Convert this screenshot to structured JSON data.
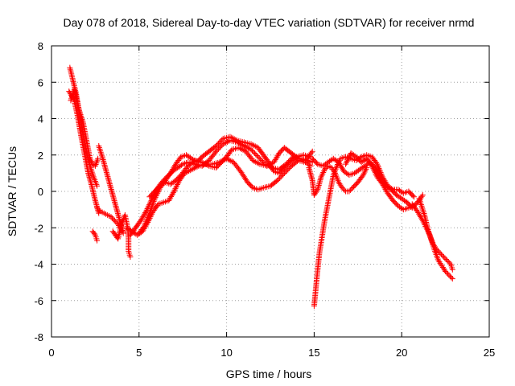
{
  "chart_data": {
    "type": "scatter",
    "title": "Day 078 of 2018, Sidereal Day-to-day VTEC variation (SDTVAR) for receiver nrmd",
    "xlabel": "GPS time / hours",
    "ylabel": "SDTVAR / TECUs",
    "xlim": [
      0,
      25
    ],
    "ylim": [
      -8,
      8
    ],
    "xticks": [
      0,
      5,
      10,
      15,
      20,
      25
    ],
    "yticks": [
      -8,
      -6,
      -4,
      -2,
      0,
      2,
      4,
      6,
      8
    ],
    "xtick_labels": [
      "0",
      "5",
      "10",
      "15",
      "20",
      "25"
    ],
    "ytick_labels": [
      "-8",
      "-6",
      "-4",
      "-2",
      "0",
      "2",
      "4",
      "6",
      "8"
    ],
    "grid": true,
    "marker": "+",
    "series": [
      {
        "name": "SDTVAR",
        "color": "#ff0000",
        "tracks": [
          [
            [
              1.05,
              6.8
            ],
            [
              1.2,
              6.2
            ],
            [
              1.4,
              5.4
            ],
            [
              1.6,
              4.3
            ],
            [
              1.8,
              3.2
            ],
            [
              2.0,
              2.2
            ],
            [
              2.2,
              1.4
            ],
            [
              2.4,
              0.8
            ],
            [
              2.6,
              0.3
            ]
          ],
          [
            [
              1.0,
              5.5
            ],
            [
              1.3,
              5.0
            ],
            [
              1.5,
              4.1
            ],
            [
              1.7,
              3.0
            ],
            [
              1.9,
              2.0
            ],
            [
              2.1,
              1.0
            ],
            [
              2.3,
              0.3
            ],
            [
              2.5,
              -0.5
            ],
            [
              2.7,
              -1.2
            ]
          ],
          [
            [
              1.1,
              5.0
            ],
            [
              1.3,
              5.6
            ],
            [
              1.5,
              4.7
            ],
            [
              1.8,
              3.8
            ],
            [
              2.0,
              2.8
            ],
            [
              2.2,
              1.8
            ],
            [
              2.35,
              1.5
            ],
            [
              2.5,
              1.4
            ],
            [
              2.65,
              1.8
            ]
          ],
          [
            [
              2.35,
              -2.2
            ],
            [
              2.5,
              -2.4
            ],
            [
              2.6,
              -2.7
            ]
          ],
          [
            [
              2.6,
              -0.9
            ],
            [
              2.8,
              -1.1
            ],
            [
              3.0,
              -1.2
            ],
            [
              3.2,
              -1.3
            ],
            [
              3.4,
              -1.4
            ],
            [
              3.6,
              -1.6
            ],
            [
              3.8,
              -1.8
            ],
            [
              4.0,
              -2.2
            ]
          ],
          [
            [
              2.7,
              2.5
            ],
            [
              2.9,
              1.9
            ],
            [
              3.1,
              1.2
            ],
            [
              3.3,
              0.5
            ],
            [
              3.5,
              -0.2
            ],
            [
              3.7,
              -0.9
            ],
            [
              3.9,
              -1.6
            ],
            [
              4.1,
              -2.3
            ]
          ],
          [
            [
              3.5,
              -2.2
            ],
            [
              3.8,
              -2.6
            ],
            [
              4.0,
              -1.8
            ],
            [
              4.2,
              -1.3
            ],
            [
              4.35,
              -2.0
            ],
            [
              4.4,
              -2.6
            ],
            [
              4.4,
              -3.3
            ],
            [
              4.5,
              -3.6
            ]
          ],
          [
            [
              4.3,
              -2.0
            ],
            [
              4.6,
              -2.2
            ],
            [
              4.9,
              -2.4
            ],
            [
              5.2,
              -2.2
            ],
            [
              5.5,
              -1.7
            ],
            [
              5.8,
              -1.1
            ],
            [
              6.1,
              -0.7
            ],
            [
              6.4,
              -0.6
            ],
            [
              6.7,
              -0.5
            ],
            [
              7.0,
              0.0
            ],
            [
              7.3,
              0.6
            ],
            [
              7.6,
              1.0
            ],
            [
              8.0,
              1.2
            ],
            [
              8.4,
              1.4
            ],
            [
              8.8,
              1.5
            ],
            [
              9.2,
              1.5
            ],
            [
              9.6,
              1.6
            ],
            [
              10.0,
              1.8
            ],
            [
              10.4,
              1.6
            ],
            [
              10.8,
              1.1
            ],
            [
              11.2,
              0.5
            ],
            [
              11.5,
              0.2
            ],
            [
              11.8,
              0.1
            ],
            [
              12.1,
              0.2
            ],
            [
              12.5,
              0.3
            ],
            [
              12.9,
              0.6
            ],
            [
              13.3,
              1.0
            ],
            [
              13.7,
              1.4
            ],
            [
              14.1,
              1.7
            ],
            [
              14.5,
              1.6
            ],
            [
              14.8,
              1.4
            ]
          ],
          [
            [
              4.5,
              -2.4
            ],
            [
              4.8,
              -2.0
            ],
            [
              5.1,
              -1.6
            ],
            [
              5.4,
              -1.1
            ],
            [
              5.7,
              -0.5
            ],
            [
              6.0,
              0.1
            ],
            [
              6.3,
              0.5
            ],
            [
              6.6,
              0.8
            ],
            [
              6.9,
              1.1
            ],
            [
              7.2,
              1.3
            ],
            [
              7.5,
              1.5
            ],
            [
              7.8,
              1.6
            ],
            [
              8.2,
              1.5
            ],
            [
              8.6,
              1.4
            ],
            [
              9.0,
              1.7
            ],
            [
              9.4,
              2.2
            ],
            [
              9.8,
              2.6
            ],
            [
              10.2,
              2.8
            ],
            [
              10.6,
              2.7
            ],
            [
              11.0,
              2.5
            ],
            [
              11.4,
              2.3
            ],
            [
              11.8,
              1.9
            ],
            [
              12.2,
              1.5
            ],
            [
              12.6,
              1.3
            ],
            [
              13.0,
              1.2
            ],
            [
              13.4,
              1.5
            ],
            [
              13.8,
              1.9
            ],
            [
              14.2,
              1.8
            ],
            [
              14.6,
              1.7
            ],
            [
              14.9,
              1.6
            ]
          ],
          [
            [
              5.0,
              -2.3
            ],
            [
              5.3,
              -1.9
            ],
            [
              5.6,
              -1.2
            ],
            [
              5.9,
              -0.4
            ],
            [
              6.2,
              0.2
            ],
            [
              6.5,
              0.6
            ],
            [
              6.8,
              1.0
            ],
            [
              7.1,
              1.5
            ],
            [
              7.4,
              1.9
            ],
            [
              7.7,
              2.0
            ],
            [
              8.0,
              1.8
            ],
            [
              8.3,
              1.6
            ],
            [
              8.6,
              1.9
            ],
            [
              9.0,
              2.2
            ],
            [
              9.4,
              2.5
            ],
            [
              9.8,
              2.9
            ],
            [
              10.2,
              3.0
            ],
            [
              10.6,
              2.8
            ],
            [
              11.0,
              2.7
            ],
            [
              11.4,
              2.6
            ],
            [
              11.8,
              2.4
            ],
            [
              12.1,
              2.0
            ],
            [
              12.4,
              1.6
            ],
            [
              12.7,
              1.1
            ],
            [
              13.0,
              1.0
            ],
            [
              13.3,
              1.3
            ],
            [
              13.6,
              1.6
            ],
            [
              14.0,
              1.9
            ],
            [
              14.4,
              2.0
            ],
            [
              14.8,
              1.9
            ]
          ],
          [
            [
              5.6,
              -0.3
            ],
            [
              5.9,
              0.0
            ],
            [
              6.2,
              0.3
            ],
            [
              6.5,
              0.5
            ],
            [
              6.8,
              0.4
            ],
            [
              7.1,
              0.6
            ],
            [
              7.4,
              0.9
            ],
            [
              7.8,
              1.4
            ],
            [
              8.2,
              1.7
            ],
            [
              8.6,
              1.6
            ],
            [
              9.0,
              1.4
            ],
            [
              9.4,
              1.3
            ],
            [
              9.7,
              1.6
            ],
            [
              10.0,
              1.9
            ],
            [
              10.3,
              2.3
            ],
            [
              10.7,
              2.4
            ],
            [
              11.1,
              2.2
            ],
            [
              11.5,
              1.7
            ],
            [
              11.9,
              1.5
            ],
            [
              12.3,
              1.4
            ],
            [
              12.7,
              1.6
            ],
            [
              13.0,
              2.1
            ],
            [
              13.3,
              2.4
            ],
            [
              13.7,
              2.1
            ],
            [
              14.1,
              1.8
            ],
            [
              14.5,
              1.7
            ],
            [
              14.9,
              2.2
            ]
          ],
          [
            [
              14.7,
              1.3
            ],
            [
              14.9,
              0.6
            ],
            [
              15.0,
              -0.2
            ],
            [
              15.2,
              0.1
            ],
            [
              15.4,
              0.8
            ],
            [
              15.6,
              1.2
            ],
            [
              15.8,
              1.4
            ],
            [
              16.0,
              1.3
            ],
            [
              16.2,
              1.0
            ],
            [
              16.4,
              0.5
            ],
            [
              16.6,
              0.2
            ],
            [
              16.8,
              0.0
            ],
            [
              17.0,
              0.0
            ],
            [
              17.2,
              0.2
            ],
            [
              17.5,
              0.5
            ],
            [
              17.8,
              0.9
            ],
            [
              18.0,
              1.3
            ]
          ],
          [
            [
              14.9,
              1.8
            ],
            [
              15.2,
              1.5
            ],
            [
              15.5,
              1.4
            ],
            [
              15.8,
              1.6
            ],
            [
              16.1,
              1.8
            ],
            [
              16.4,
              1.6
            ],
            [
              16.7,
              1.1
            ],
            [
              17.0,
              0.9
            ],
            [
              17.3,
              1.0
            ],
            [
              17.6,
              1.2
            ],
            [
              17.9,
              1.4
            ],
            [
              18.2,
              1.6
            ],
            [
              18.5,
              1.3
            ],
            [
              18.8,
              0.7
            ],
            [
              19.1,
              0.3
            ],
            [
              19.4,
              0.1
            ],
            [
              19.7,
              -0.2
            ],
            [
              20.0,
              -0.4
            ],
            [
              20.3,
              -0.6
            ],
            [
              20.6,
              -0.9
            ]
          ],
          [
            [
              15.0,
              -6.3
            ],
            [
              15.1,
              -5.3
            ],
            [
              15.2,
              -4.3
            ],
            [
              15.3,
              -3.4
            ],
            [
              15.4,
              -2.8
            ],
            [
              15.5,
              -2.2
            ],
            [
              15.6,
              -1.6
            ],
            [
              15.7,
              -1.1
            ],
            [
              15.8,
              -0.6
            ],
            [
              15.9,
              -0.1
            ],
            [
              16.0,
              0.4
            ],
            [
              16.1,
              0.9
            ],
            [
              16.3,
              1.4
            ],
            [
              16.5,
              1.8
            ],
            [
              16.8,
              1.9
            ],
            [
              17.1,
              1.8
            ],
            [
              17.4,
              1.7
            ],
            [
              17.7,
              1.9
            ],
            [
              18.0,
              2.0
            ],
            [
              18.3,
              1.9
            ],
            [
              18.6,
              1.5
            ],
            [
              18.9,
              0.8
            ],
            [
              19.2,
              0.3
            ],
            [
              19.5,
              0.1
            ],
            [
              19.8,
              0.1
            ],
            [
              20.1,
              -0.1
            ],
            [
              20.4,
              0.0
            ],
            [
              20.7,
              -0.3
            ]
          ],
          [
            [
              16.8,
              1.5
            ],
            [
              17.1,
              2.1
            ],
            [
              17.4,
              1.9
            ],
            [
              17.7,
              1.6
            ],
            [
              18.0,
              1.8
            ],
            [
              18.3,
              1.4
            ],
            [
              18.6,
              0.8
            ],
            [
              18.9,
              0.4
            ],
            [
              19.2,
              -0.1
            ],
            [
              19.5,
              -0.5
            ],
            [
              19.8,
              -0.8
            ],
            [
              20.1,
              -1.0
            ],
            [
              20.4,
              -0.9
            ],
            [
              20.7,
              -0.8
            ],
            [
              21.0,
              -0.5
            ],
            [
              21.2,
              -0.2
            ]
          ],
          [
            [
              20.6,
              -0.7
            ],
            [
              20.9,
              -1.1
            ],
            [
              21.2,
              -1.6
            ],
            [
              21.4,
              -2.0
            ],
            [
              21.6,
              -2.4
            ],
            [
              21.8,
              -2.9
            ],
            [
              22.0,
              -3.2
            ],
            [
              22.2,
              -3.4
            ],
            [
              22.4,
              -3.6
            ],
            [
              22.6,
              -3.8
            ],
            [
              22.8,
              -4.0
            ],
            [
              22.9,
              -4.3
            ]
          ],
          [
            [
              21.0,
              -0.4
            ],
            [
              21.3,
              -1.3
            ],
            [
              21.5,
              -2.1
            ],
            [
              21.7,
              -2.7
            ],
            [
              21.9,
              -3.3
            ],
            [
              22.1,
              -3.8
            ],
            [
              22.3,
              -4.1
            ],
            [
              22.5,
              -4.4
            ],
            [
              22.7,
              -4.6
            ],
            [
              22.9,
              -4.8
            ]
          ]
        ]
      }
    ]
  }
}
